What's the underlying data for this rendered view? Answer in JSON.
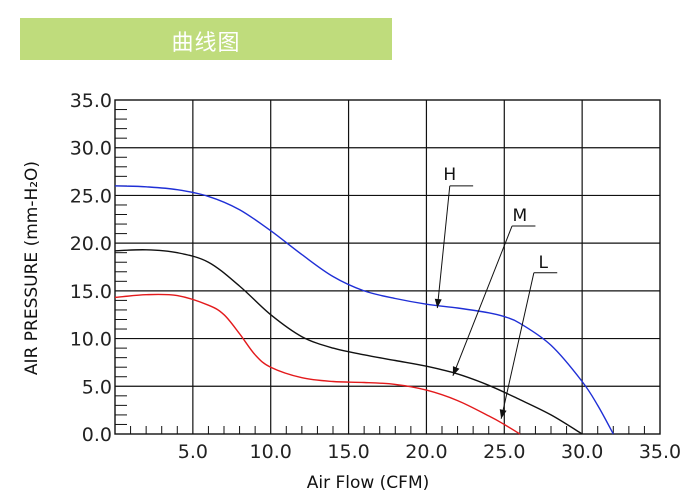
{
  "banner": {
    "title": "曲线图",
    "color": "#bfdc7c"
  },
  "chart_data": {
    "type": "line",
    "title": "",
    "xlabel": "Air Flow (CFM)",
    "ylabel": "AIR PRESSURE (mm-H₂O)",
    "xlim": [
      0,
      35
    ],
    "ylim": [
      0,
      35
    ],
    "x_ticks": [
      "5.0",
      "10.0",
      "15.0",
      "20.0",
      "25.0",
      "30.0",
      "35.0"
    ],
    "y_ticks": [
      "0.0",
      "5.0",
      "10.0",
      "15.0",
      "20.0",
      "25.0",
      "30.0",
      "35.0"
    ],
    "grid": true,
    "series": [
      {
        "name": "H",
        "color": "#1f2fd6",
        "points": [
          [
            0,
            26
          ],
          [
            2,
            25.9
          ],
          [
            4,
            25.6
          ],
          [
            6,
            24.9
          ],
          [
            8,
            23.5
          ],
          [
            10,
            21.3
          ],
          [
            12,
            18.8
          ],
          [
            14,
            16.5
          ],
          [
            16,
            15
          ],
          [
            18,
            14.2
          ],
          [
            20,
            13.6
          ],
          [
            22,
            13.2
          ],
          [
            24,
            12.7
          ],
          [
            25,
            12.3
          ],
          [
            26,
            11.6
          ],
          [
            28,
            9.3
          ],
          [
            30,
            5.5
          ],
          [
            31,
            3
          ],
          [
            32,
            0
          ]
        ]
      },
      {
        "name": "M",
        "color": "#111111",
        "points": [
          [
            0,
            19.2
          ],
          [
            2,
            19.3
          ],
          [
            4,
            19
          ],
          [
            6,
            18
          ],
          [
            8,
            15.5
          ],
          [
            10,
            12.5
          ],
          [
            12,
            10.2
          ],
          [
            14,
            9
          ],
          [
            16,
            8.3
          ],
          [
            18,
            7.7
          ],
          [
            20,
            7.1
          ],
          [
            22,
            6.3
          ],
          [
            24,
            5.1
          ],
          [
            26,
            3.6
          ],
          [
            28,
            2
          ],
          [
            30,
            0
          ]
        ]
      },
      {
        "name": "L",
        "color": "#e31a1c",
        "points": [
          [
            0,
            14.3
          ],
          [
            2,
            14.6
          ],
          [
            4,
            14.5
          ],
          [
            6,
            13.5
          ],
          [
            7,
            12.5
          ],
          [
            8,
            10.5
          ],
          [
            9,
            8.3
          ],
          [
            10,
            7
          ],
          [
            12,
            5.9
          ],
          [
            14,
            5.5
          ],
          [
            16,
            5.4
          ],
          [
            18,
            5.2
          ],
          [
            20,
            4.6
          ],
          [
            22,
            3.5
          ],
          [
            24,
            1.9
          ],
          [
            25,
            1
          ],
          [
            26,
            0
          ]
        ]
      }
    ]
  }
}
